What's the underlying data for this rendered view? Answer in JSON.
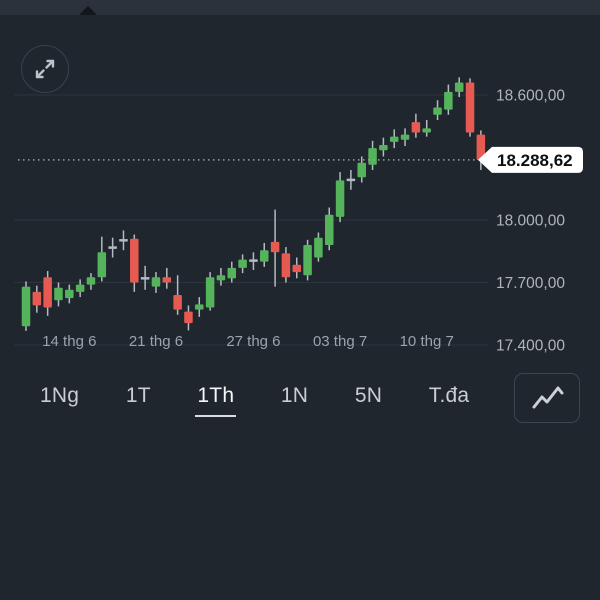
{
  "window": {
    "top_bar_color": "#2b323c",
    "background_color": "#1f262e"
  },
  "controls": {
    "expand_icon": "expand-diagonal-arrows",
    "chart_type_icon": "line-chart-zigzag"
  },
  "price_axis": {
    "labels": [
      {
        "text": "18.600,00",
        "value": 18600
      },
      {
        "text": "18.000,00",
        "value": 18000
      },
      {
        "text": "17.700,00",
        "value": 17700
      },
      {
        "text": "17.400,00",
        "value": 17400
      }
    ]
  },
  "current_price": {
    "text": "18.288,62",
    "value": 18288.62
  },
  "x_axis": {
    "labels": [
      {
        "text": "14 thg 6",
        "candle_index": 4
      },
      {
        "text": "21 thg 6",
        "candle_index": 12
      },
      {
        "text": "27 thg 6",
        "candle_index": 21
      },
      {
        "text": "03 thg 7",
        "candle_index": 29
      },
      {
        "text": "10 thg 7",
        "candle_index": 37
      }
    ]
  },
  "tabs": {
    "items": [
      {
        "label": "1Ng",
        "active": false
      },
      {
        "label": "1T",
        "active": false
      },
      {
        "label": "1Th",
        "active": true
      },
      {
        "label": "1N",
        "active": false
      },
      {
        "label": "5N",
        "active": false
      },
      {
        "label": "T.đa",
        "active": false
      }
    ]
  },
  "chart_data": {
    "type": "candlestick",
    "title": "",
    "y_axis_values": [
      18600,
      18000,
      17700,
      17400
    ],
    "y_range_shown": [
      17400,
      18600
    ],
    "last_price": 18288.62,
    "colors": {
      "up": "#55b45b",
      "down": "#e65a52",
      "wick": "#b4bac1",
      "grid": "#2d343e",
      "current_price_line": "#9aa0a8",
      "price_label": "#b0b5bc",
      "date_label": "#9da3ab",
      "badge_bg": "#ffffff",
      "badge_text": "#0c0e10"
    },
    "candles_ohlc": [
      [
        17490,
        17705,
        17468,
        17680
      ],
      [
        17655,
        17685,
        17555,
        17590
      ],
      [
        17725,
        17755,
        17540,
        17580
      ],
      [
        17615,
        17700,
        17585,
        17675
      ],
      [
        17625,
        17690,
        17600,
        17665
      ],
      [
        17655,
        17715,
        17630,
        17690
      ],
      [
        17690,
        17745,
        17665,
        17725
      ],
      [
        17725,
        17920,
        17705,
        17845
      ],
      [
        17860,
        17915,
        17820,
        17875
      ],
      [
        17890,
        17950,
        17855,
        17915
      ],
      [
        17910,
        17930,
        17655,
        17700
      ],
      [
        17710,
        17780,
        17665,
        17730
      ],
      [
        17680,
        17750,
        17650,
        17725
      ],
      [
        17725,
        17770,
        17670,
        17700
      ],
      [
        17640,
        17735,
        17545,
        17570
      ],
      [
        17560,
        17590,
        17470,
        17505
      ],
      [
        17570,
        17630,
        17535,
        17595
      ],
      [
        17580,
        17750,
        17565,
        17725
      ],
      [
        17710,
        17770,
        17685,
        17735
      ],
      [
        17720,
        17800,
        17700,
        17770
      ],
      [
        17770,
        17835,
        17745,
        17810
      ],
      [
        17800,
        17845,
        17760,
        17810
      ],
      [
        17800,
        17890,
        17775,
        17855
      ],
      [
        17895,
        18050,
        17680,
        17845
      ],
      [
        17840,
        17870,
        17700,
        17725
      ],
      [
        17785,
        17820,
        17720,
        17750
      ],
      [
        17735,
        17905,
        17710,
        17880
      ],
      [
        17820,
        17940,
        17800,
        17915
      ],
      [
        17880,
        18060,
        17855,
        18025
      ],
      [
        18015,
        18230,
        17990,
        18190
      ],
      [
        18190,
        18240,
        18145,
        18195
      ],
      [
        18205,
        18305,
        18180,
        18275
      ],
      [
        18265,
        18380,
        18240,
        18345
      ],
      [
        18335,
        18395,
        18305,
        18360
      ],
      [
        18375,
        18435,
        18345,
        18400
      ],
      [
        18385,
        18440,
        18355,
        18410
      ],
      [
        18470,
        18510,
        18395,
        18420
      ],
      [
        18420,
        18480,
        18400,
        18440
      ],
      [
        18505,
        18575,
        18480,
        18540
      ],
      [
        18530,
        18650,
        18505,
        18615
      ],
      [
        18615,
        18685,
        18590,
        18660
      ],
      [
        18660,
        18680,
        18400,
        18420
      ],
      [
        18410,
        18430,
        18240,
        18288.62
      ]
    ],
    "doji_indices": [
      8,
      9,
      11,
      21,
      30
    ]
  }
}
